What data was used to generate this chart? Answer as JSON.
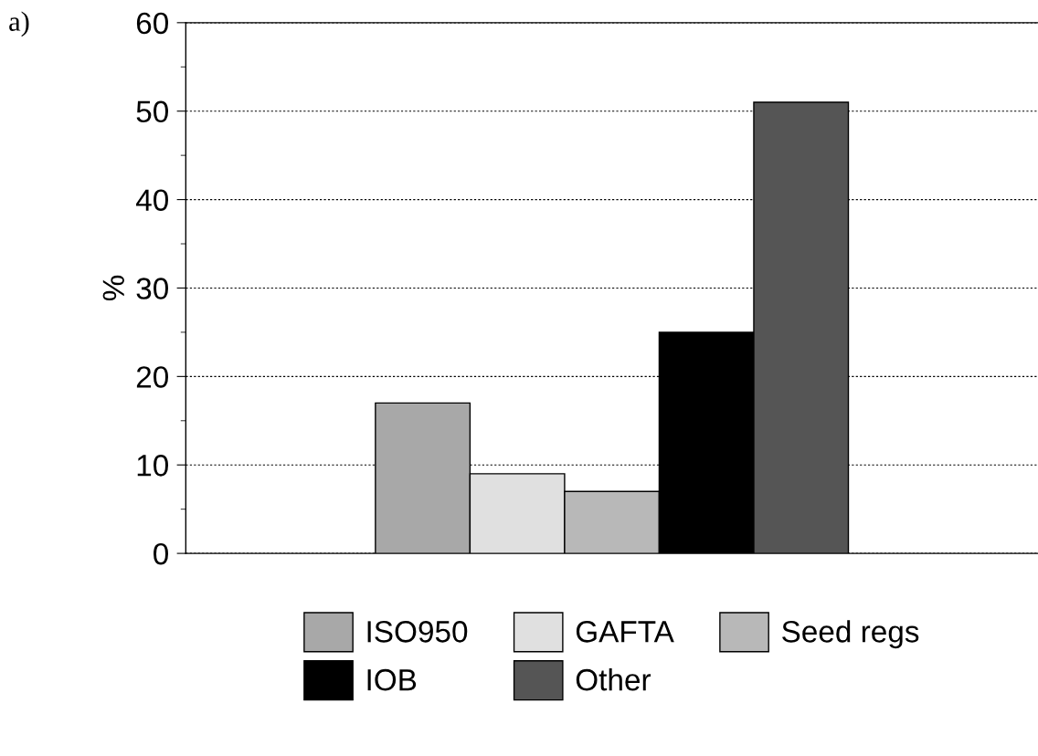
{
  "chart_data": {
    "type": "bar",
    "title": "a)",
    "ylabel": "%",
    "categories": [
      null
    ],
    "series": [
      {
        "name": "ISO950",
        "color": "#a8a8a8",
        "values": [
          17
        ]
      },
      {
        "name": "GAFTA",
        "color": "#e0e0e0",
        "values": [
          9
        ]
      },
      {
        "name": "Seed regs",
        "color": "#b8b8b8",
        "values": [
          7
        ]
      },
      {
        "name": "IOB",
        "color": "#000000",
        "values": [
          25
        ]
      },
      {
        "name": "Other",
        "color": "#555555",
        "values": [
          51
        ]
      }
    ],
    "ylim": [
      0,
      60
    ],
    "yticks": [
      0,
      {
        "value": 5,
        "label": null
      },
      10,
      {
        "value": 15,
        "label": null
      },
      20,
      {
        "value": 25,
        "label": null
      },
      30,
      {
        "value": 35,
        "label": null
      },
      40,
      {
        "value": 45,
        "label": null
      },
      50,
      {
        "value": 55,
        "label": null
      },
      60
    ],
    "grid": "y",
    "legend": "bottom"
  }
}
